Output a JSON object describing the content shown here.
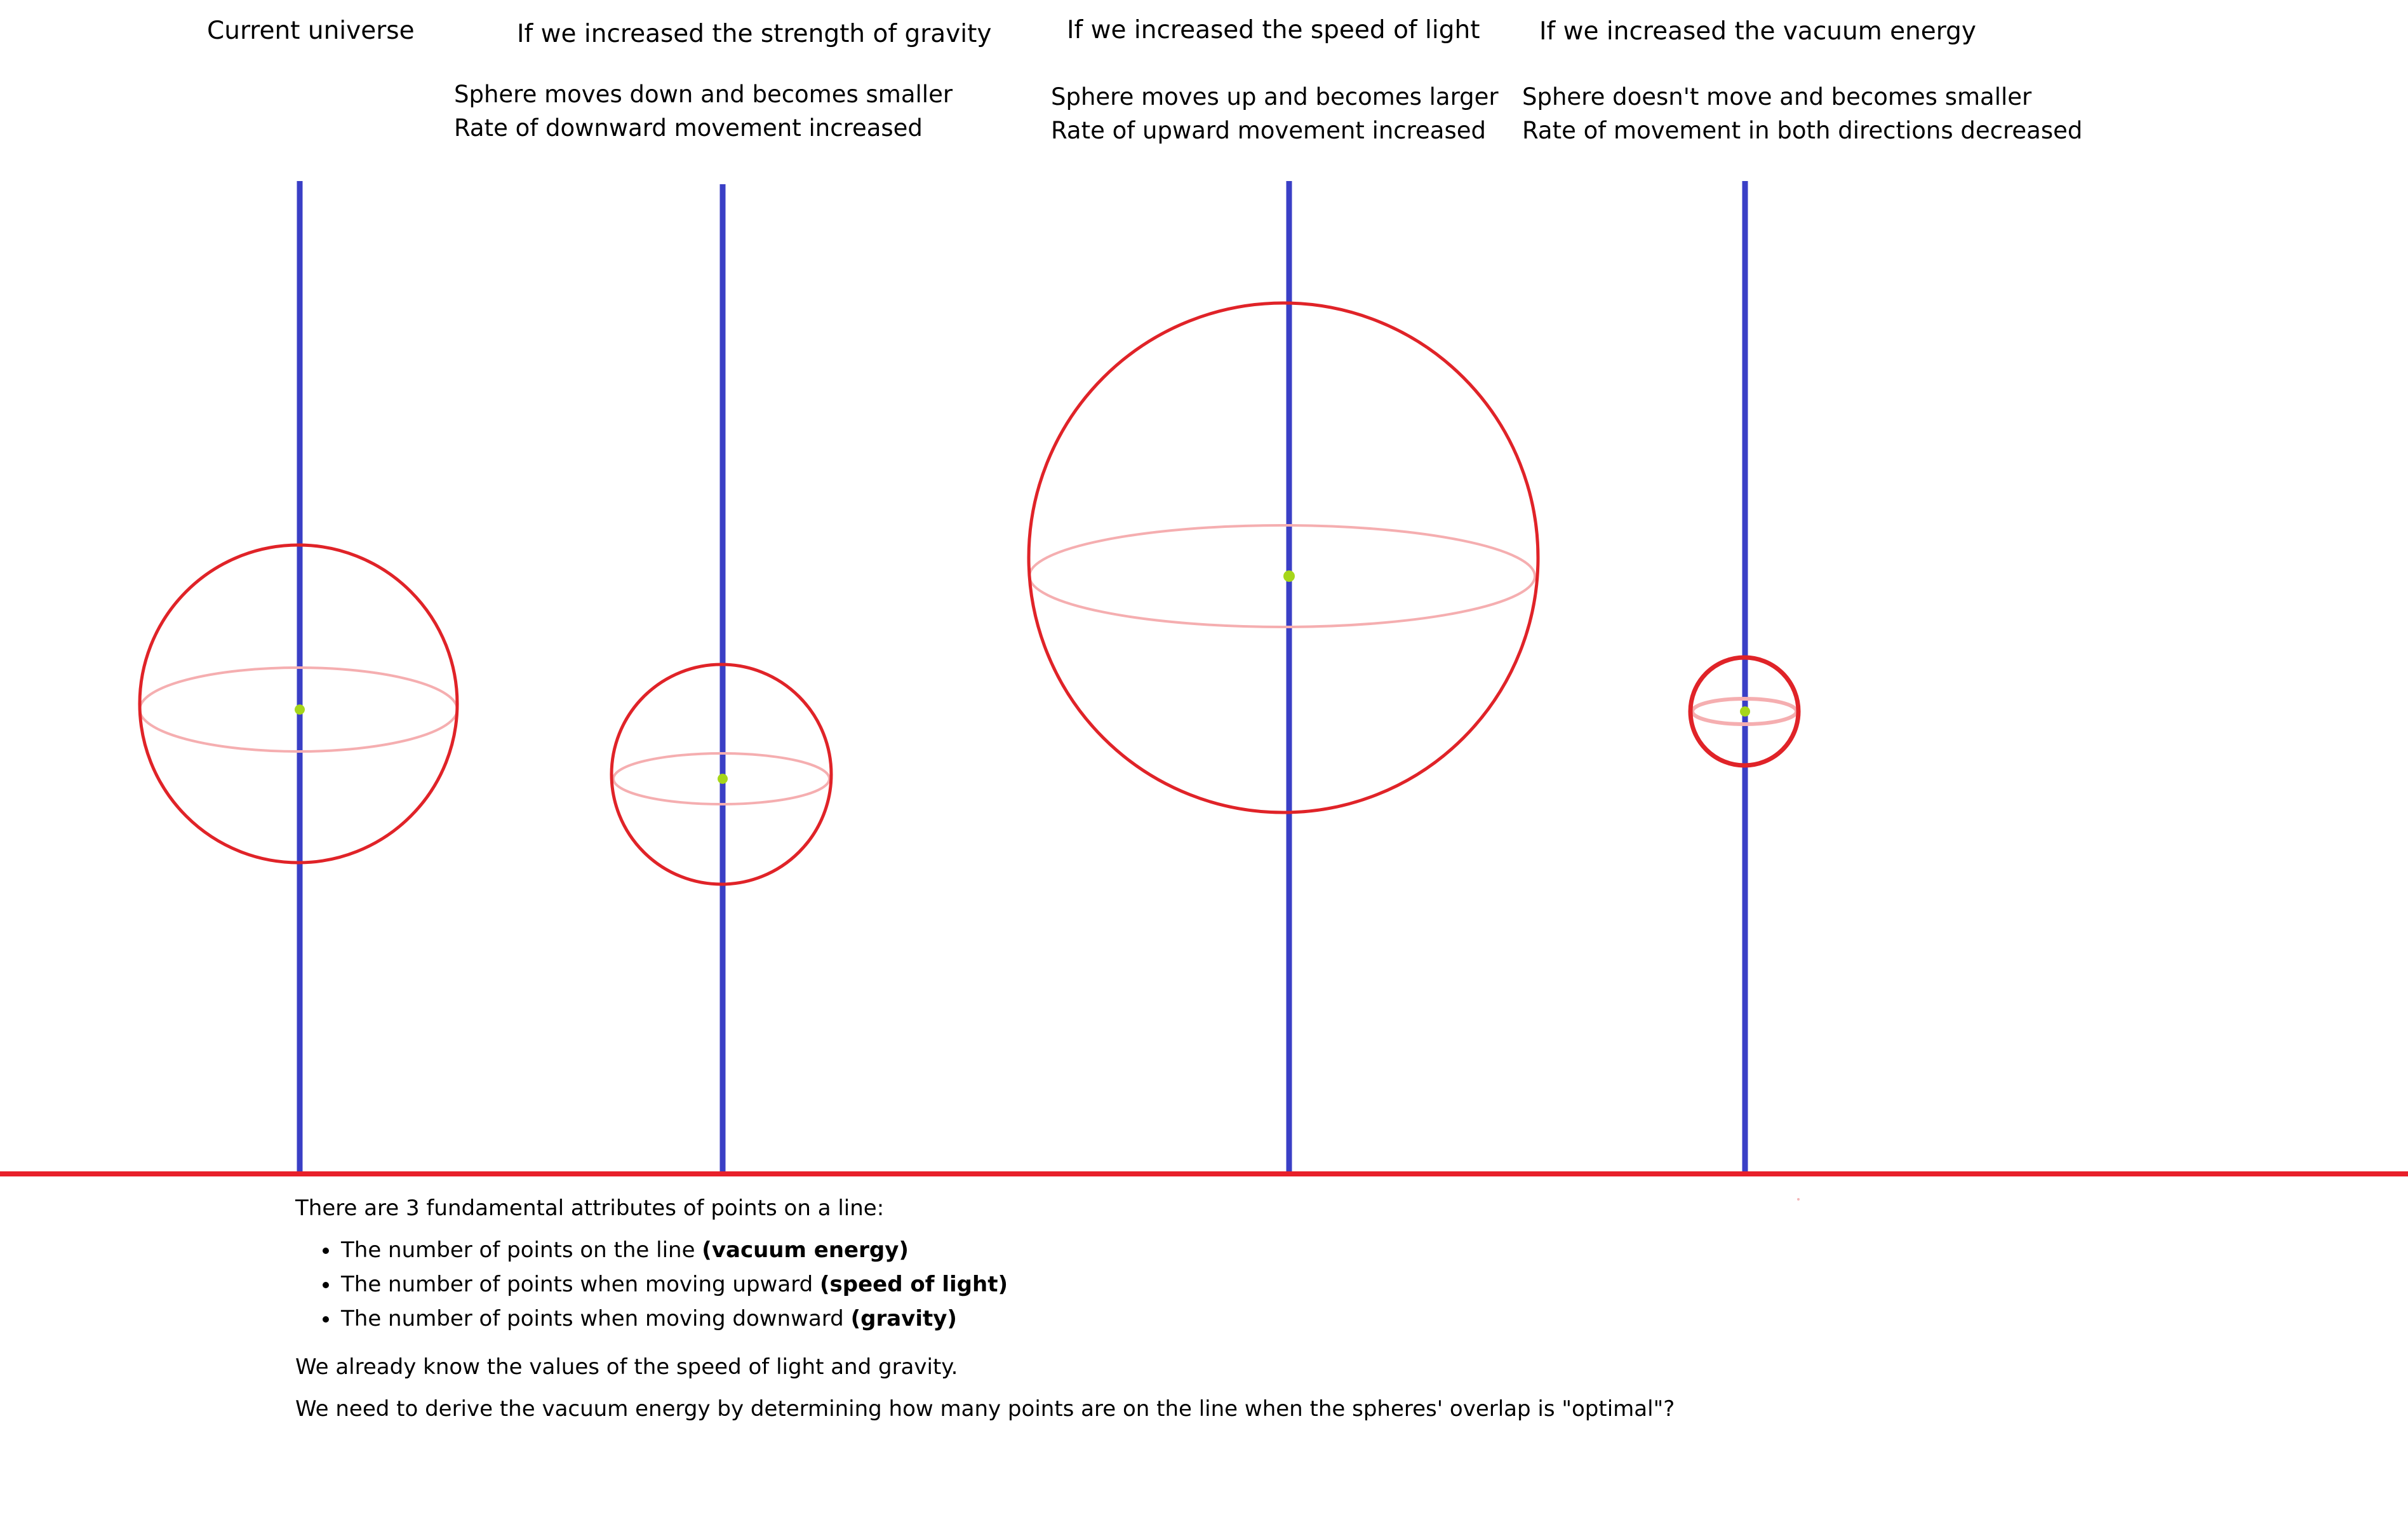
{
  "scenarios": [
    {
      "title": "Current universe",
      "caption_lines": []
    },
    {
      "title": "If we increased the strength of gravity",
      "caption_lines": [
        "Sphere moves down and becomes smaller",
        "Rate of downward movement increased"
      ]
    },
    {
      "title": "If we increased the speed of light",
      "caption_lines": [
        "Sphere moves up and becomes larger",
        "Rate of upward movement increased"
      ]
    },
    {
      "title": "If we increased the vacuum energy",
      "caption_lines": [
        "Sphere doesn't move and becomes smaller",
        "Rate of movement in both directions decreased"
      ]
    }
  ],
  "notes": {
    "intro": "There are 3 fundamental attributes of points on a line:",
    "attributes": [
      {
        "text": "The number of points on the line ",
        "term": "(vacuum energy)"
      },
      {
        "text": "The number of points when moving upward ",
        "term": "(speed of light)"
      },
      {
        "text": "The number of points when moving downward ",
        "term": "(gravity)"
      }
    ],
    "known": "We already know the values of the speed of light and gravity.",
    "question": "We need to derive the vacuum energy by determining how many points are on the line when the spheres' overlap is \"optimal\"?"
  },
  "colors": {
    "axis": "#3a3fc6",
    "baseline": "#e8202a",
    "sphere": "#e02328",
    "equator": "#f5aeb0",
    "center": "#a6d61a",
    "text": "#000000"
  }
}
